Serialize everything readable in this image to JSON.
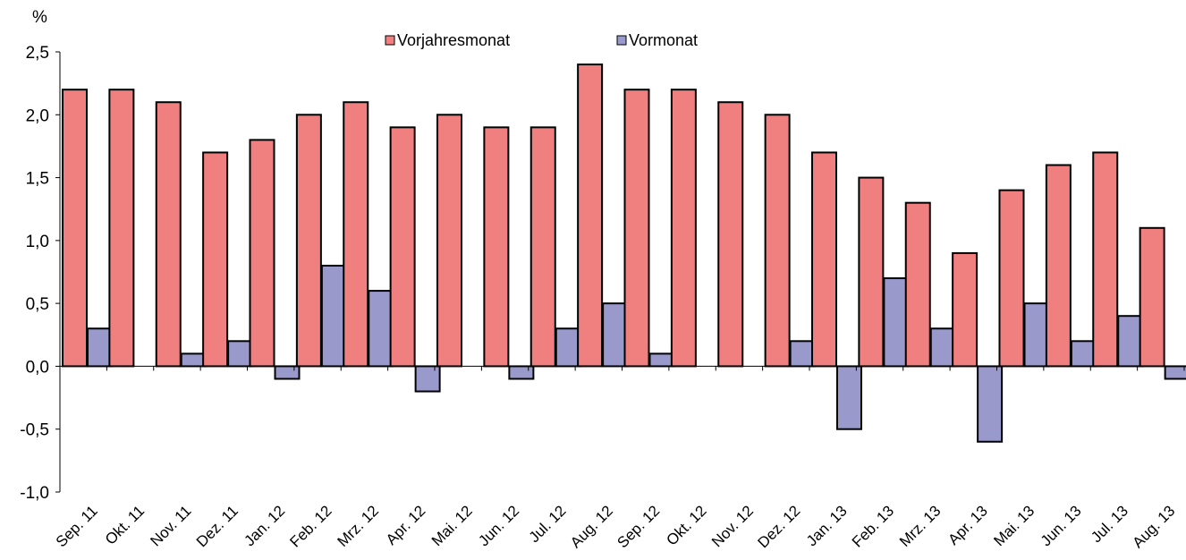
{
  "chart_data": {
    "type": "bar",
    "y_unit_label": "%",
    "title": "",
    "xlabel": "",
    "ylabel": "",
    "ylim": [
      -1.0,
      2.5
    ],
    "yticks": [
      -1.0,
      -0.5,
      0.0,
      0.5,
      1.0,
      1.5,
      2.0,
      2.5
    ],
    "ytick_labels": [
      "-1,0",
      "-0,5",
      "0,0",
      "0,5",
      "1,0",
      "1,5",
      "2,0",
      "2,5"
    ],
    "categories": [
      "Sep. 11",
      "Okt. 11",
      "Nov. 11",
      "Dez. 11",
      "Jan. 12",
      "Feb. 12",
      "Mrz. 12",
      "Apr. 12",
      "Mai. 12",
      "Jun. 12",
      "Jul. 12",
      "Aug. 12",
      "Sep. 12",
      "Okt. 12",
      "Nov. 12",
      "Dez. 12",
      "Jan. 13",
      "Feb. 13",
      "Mrz. 13",
      "Apr. 13",
      "Mai. 13",
      "Jun. 13",
      "Jul. 13",
      "Aug. 13"
    ],
    "series": [
      {
        "name": "Vorjahresmonat",
        "color": "#F08080",
        "values": [
          2.2,
          2.2,
          2.1,
          1.7,
          1.8,
          2.0,
          2.1,
          1.9,
          2.0,
          1.9,
          1.9,
          2.4,
          2.2,
          2.2,
          2.1,
          2.0,
          1.7,
          1.5,
          1.3,
          0.9,
          1.4,
          1.6,
          1.7,
          1.1
        ]
      },
      {
        "name": "Vormonat",
        "color": "#9999CC",
        "values": [
          0.3,
          0.0,
          0.1,
          0.2,
          -0.1,
          0.8,
          0.6,
          -0.2,
          0.0,
          -0.1,
          0.3,
          0.5,
          0.1,
          0.0,
          0.0,
          0.2,
          -0.5,
          0.7,
          0.3,
          -0.6,
          0.5,
          0.2,
          0.4,
          -0.1
        ]
      }
    ],
    "grid": false,
    "legend_position": "top-center"
  }
}
